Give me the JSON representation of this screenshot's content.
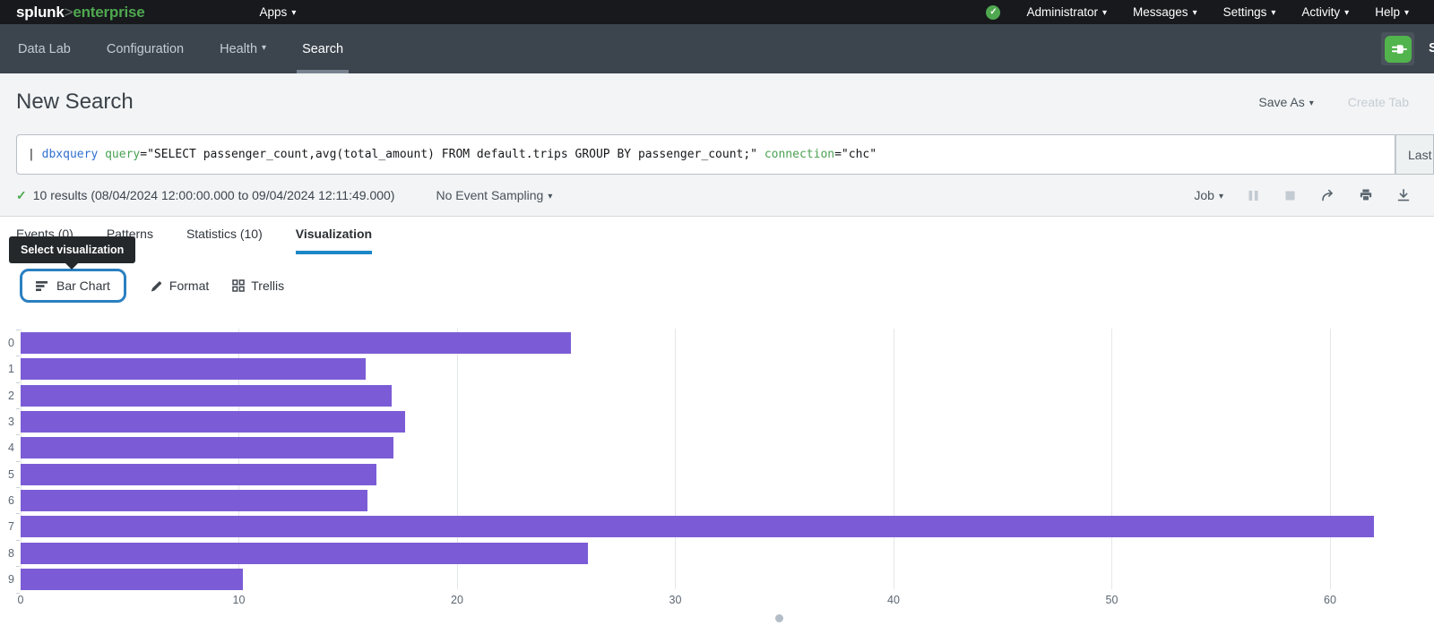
{
  "topbar": {
    "logo": {
      "brand": "splunk",
      "gt": ">",
      "product": "enterprise"
    },
    "apps_label": "Apps",
    "menus": [
      {
        "label": "Administrator"
      },
      {
        "label": "Messages"
      },
      {
        "label": "Settings"
      },
      {
        "label": "Activity"
      },
      {
        "label": "Help"
      }
    ]
  },
  "appnav": {
    "items": [
      {
        "label": "Data Lab"
      },
      {
        "label": "Configuration"
      },
      {
        "label": "Health"
      },
      {
        "label": "Search"
      }
    ],
    "app_title_partial": "S"
  },
  "header": {
    "title": "New Search",
    "save_as": "Save As",
    "create_table": "Create Tab"
  },
  "search": {
    "query_segments": [
      {
        "t": "| ",
        "c": "plain"
      },
      {
        "t": "dbxquery",
        "c": "command"
      },
      {
        "t": " ",
        "c": "plain"
      },
      {
        "t": "query",
        "c": "param"
      },
      {
        "t": "=\"SELECT passenger_count,avg(total_amount) FROM default.trips GROUP BY passenger_count;\"",
        "c": "plain"
      },
      {
        "t": " ",
        "c": "plain"
      },
      {
        "t": "connection",
        "c": "param"
      },
      {
        "t": "=\"chc\"",
        "c": "plain"
      }
    ],
    "time_range": "Last"
  },
  "results_bar": {
    "summary": "10 results (08/04/2024 12:00:00.000 to 09/04/2024 12:11:49.000)",
    "sampling": "No Event Sampling",
    "job": "Job"
  },
  "tabs": [
    {
      "label": "Events (0)"
    },
    {
      "label": "Patterns"
    },
    {
      "label": "Statistics (10)"
    },
    {
      "label": "Visualization"
    }
  ],
  "tooltip": "Select visualization",
  "viz_controls": {
    "chart_type": "Bar Chart",
    "format": "Format",
    "trellis": "Trellis"
  },
  "chart_data": {
    "type": "bar",
    "orientation": "horizontal",
    "categories": [
      "0",
      "1",
      "2",
      "3",
      "4",
      "5",
      "6",
      "7",
      "8",
      "9"
    ],
    "values": [
      25.2,
      15.8,
      17.0,
      17.6,
      17.1,
      16.3,
      15.9,
      62.0,
      26.0,
      10.2
    ],
    "x_ticks": [
      0,
      10,
      20,
      30,
      40,
      50,
      60
    ],
    "xlim": [
      0,
      62.3
    ],
    "xlabel": "",
    "ylabel": "",
    "grid": true,
    "legend": false,
    "bar_color": "#7B5CD6"
  },
  "colors": {
    "brand_green": "#4FA84F",
    "accent_blue": "#1D87C8",
    "focus_ring_blue": "#2A80C1",
    "syntax_command": "#2F6FD0",
    "syntax_param": "#4AA153",
    "bar_purple": "#7B5CD6",
    "topbar_bg": "#17191D",
    "appnav_bg": "#3C444D"
  }
}
